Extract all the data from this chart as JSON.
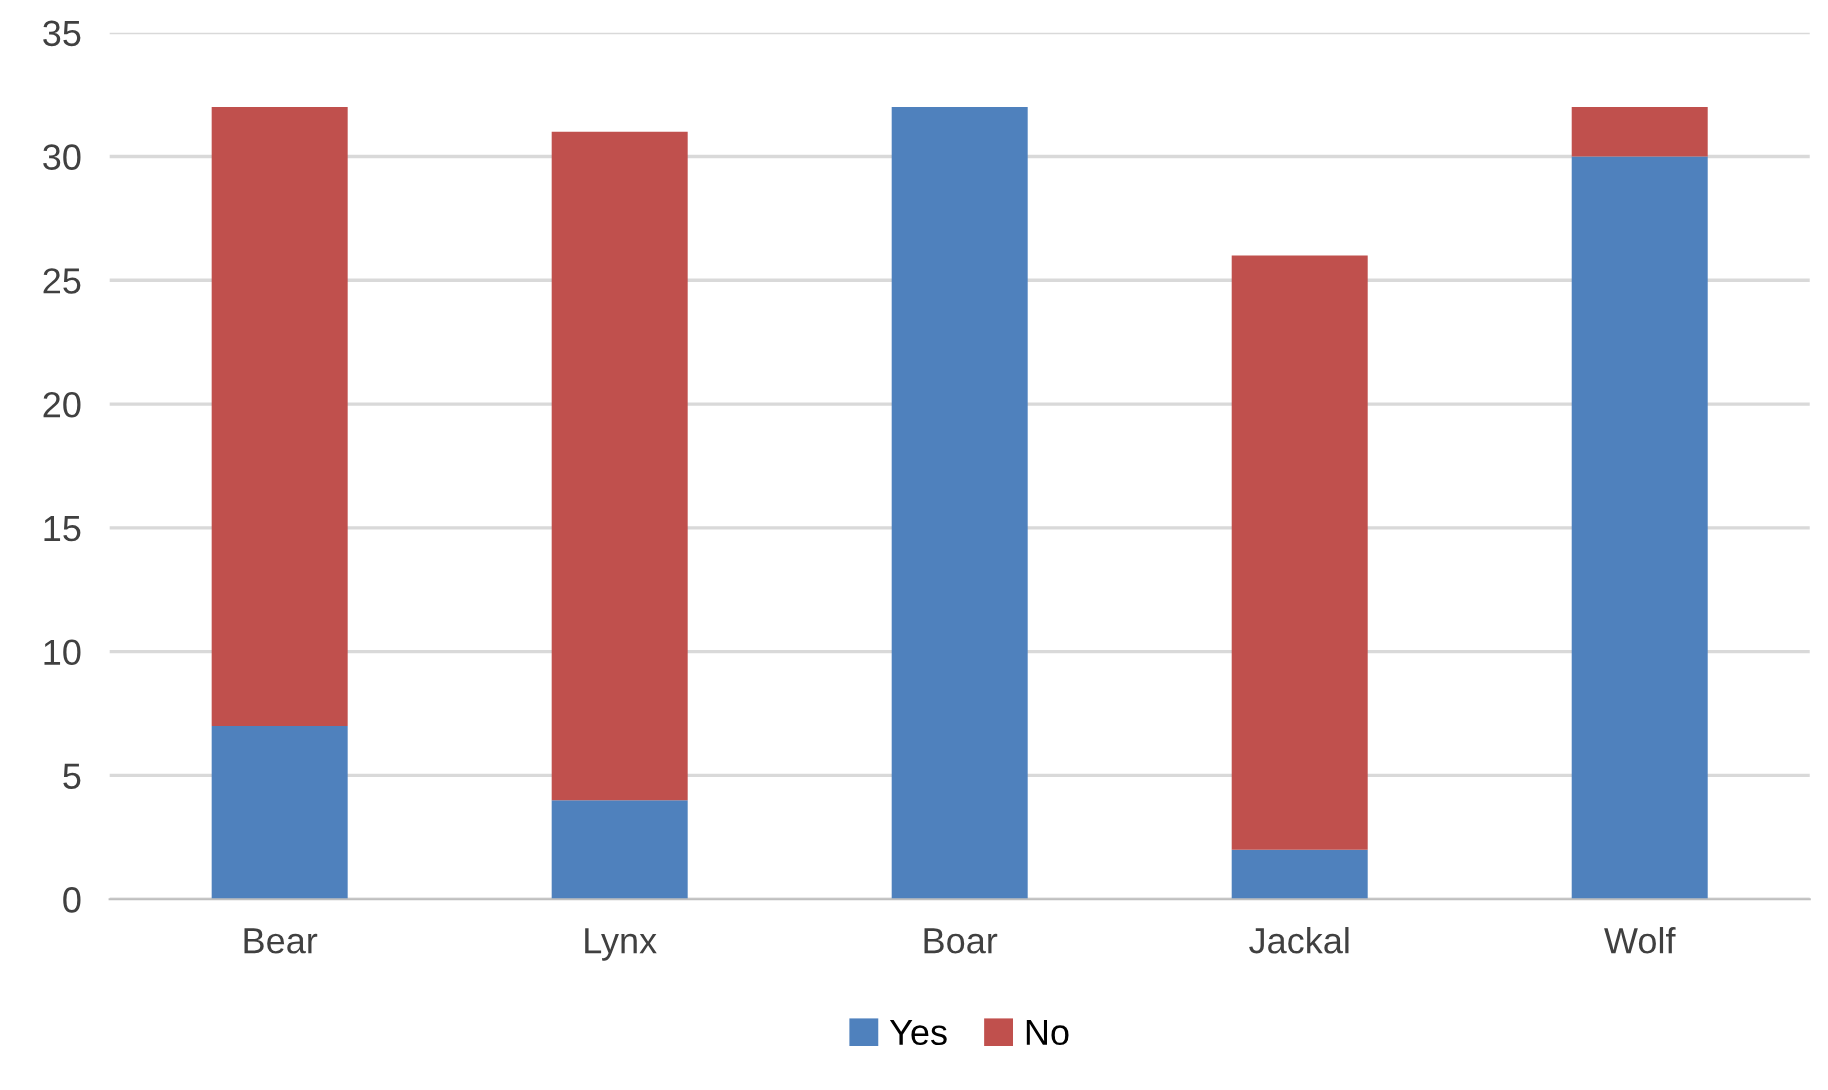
{
  "chart_data": {
    "type": "bar",
    "stacked": true,
    "categories": [
      "Bear",
      "Lynx",
      "Boar",
      "Jackal",
      "Wolf"
    ],
    "series": [
      {
        "name": "Yes",
        "color": "#4f81bd",
        "values": [
          7,
          4,
          32,
          2,
          30
        ]
      },
      {
        "name": "No",
        "color": "#c0504d",
        "values": [
          25,
          27,
          0,
          24,
          2
        ]
      }
    ],
    "ylim": [
      0,
      35
    ],
    "yticks": [
      0,
      5,
      10,
      15,
      20,
      25,
      30,
      35
    ],
    "grid": "y",
    "legend": "bottom"
  }
}
